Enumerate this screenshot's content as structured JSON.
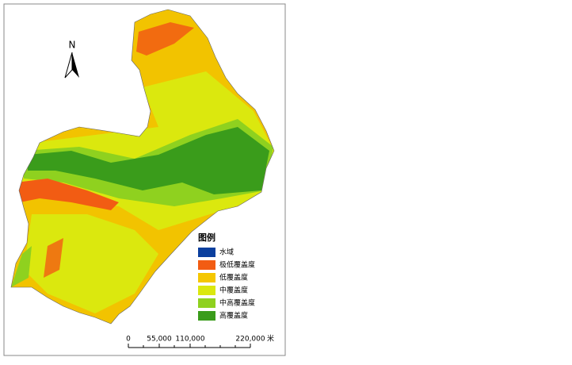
{
  "compass": {
    "label": "N"
  },
  "legend": {
    "title": "图例",
    "items": [
      {
        "label": "水域",
        "color": "#0b3f9e"
      },
      {
        "label": "极低覆盖度",
        "color": "#f25c13"
      },
      {
        "label": "低覆盖度",
        "color": "#f5c700"
      },
      {
        "label": "中覆盖度",
        "color": "#dbe80e"
      },
      {
        "label": "中高覆盖度",
        "color": "#8fd11f"
      },
      {
        "label": "高覆盖度",
        "color": "#3a9c1b"
      }
    ]
  },
  "scale_bar": {
    "labels": [
      "0",
      "55,000",
      "110,000",
      "220,000"
    ],
    "unit": "米"
  }
}
